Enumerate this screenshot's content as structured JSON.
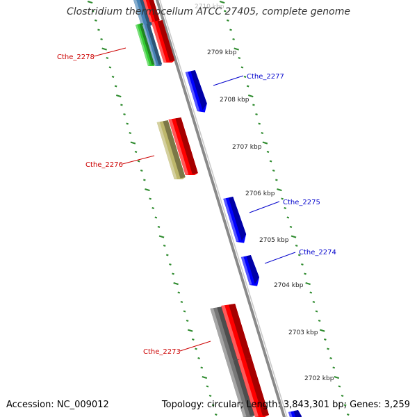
{
  "title": "Clostridium thermocellum ATCC 27405, complete genome",
  "footer": {
    "accession": "Accession: NC_009012",
    "summary": "Topology: circular; Length: 3,843,301 bp; Genes: 3,259"
  },
  "colors": {
    "backbone": "#8a8a8a",
    "tick_green": "#2e8b2e",
    "forward_label": "#0000cc",
    "reverse_label": "#cc0000",
    "forward_gene": "#0000ff",
    "reverse_gene": "#ff0000",
    "gene_khaki": "#bdb76b",
    "gene_gray": "#777777",
    "gene_green": "#33cc33",
    "gene_steelblue": "#4682b4"
  },
  "kbp_labels": [
    "2710 kbp",
    "2709 kbp",
    "2708 kbp",
    "2707 kbp",
    "2706 kbp",
    "2705 kbp",
    "2704 kbp",
    "2703 kbp",
    "2702 kbp"
  ],
  "forward_genes": [
    {
      "label": "Cthe_2277"
    },
    {
      "label": "Cthe_2275"
    },
    {
      "label": "Cthe_2274"
    }
  ],
  "reverse_genes": [
    {
      "label": "Cthe_2278"
    },
    {
      "label": "Cthe_2276"
    },
    {
      "label": "Cthe_2273"
    }
  ]
}
